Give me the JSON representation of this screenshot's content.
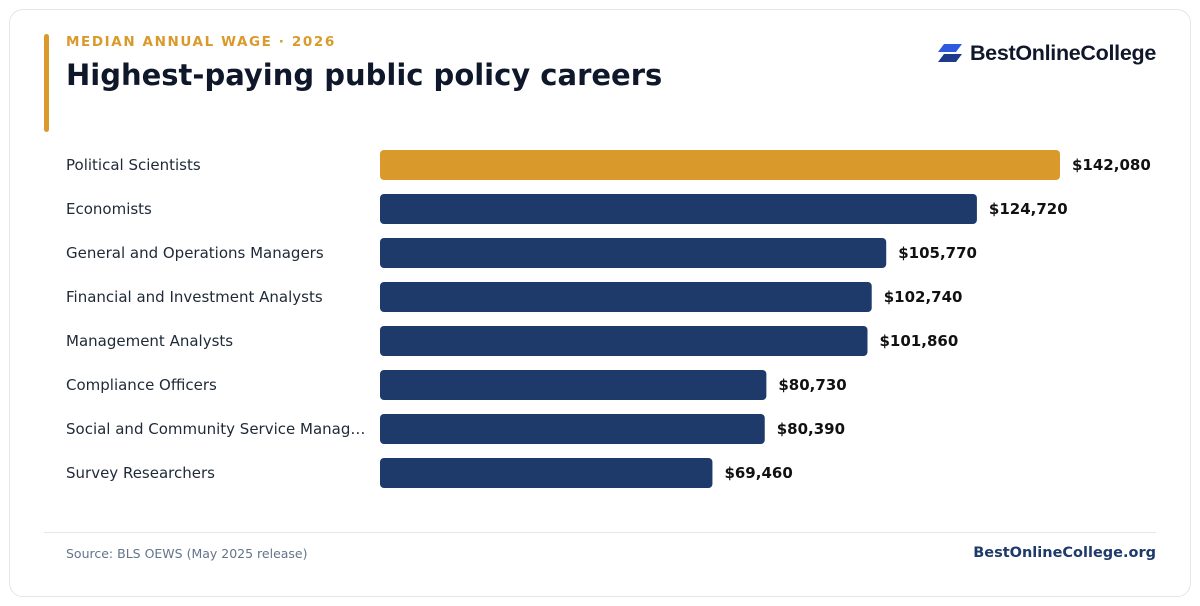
{
  "header": {
    "eyebrow": "MEDIAN ANNUAL WAGE · 2026",
    "title": "Highest-paying public policy careers"
  },
  "brand": {
    "logo_text": "BestOnlineCollege",
    "site": "BestOnlineCollege.org",
    "logo_icon": "stacked-parallelogram-logo"
  },
  "footer": {
    "source": "Source: BLS OEWS (May 2025 release)"
  },
  "colors": {
    "highlight": "#d99a2b",
    "bar": "#1e3a6b",
    "text": "#0f172a",
    "logo_blue": "#2f5ae0"
  },
  "chart_data": {
    "type": "bar",
    "orientation": "horizontal",
    "categories": [
      "Political Scientists",
      "Economists",
      "General and Operations Managers",
      "Financial and Investment Analysts",
      "Management Analysts",
      "Compliance Officers",
      "Social and Community Service Manag…",
      "Survey Researchers"
    ],
    "values": [
      142080,
      124720,
      105770,
      102740,
      101860,
      80730,
      80390,
      69460
    ],
    "value_labels": [
      "$142,080",
      "$124,720",
      "$105,770",
      "$102,740",
      "$101,860",
      "$80,730",
      "$80,390",
      "$69,460"
    ],
    "highlight_index": 0,
    "xlim": [
      0,
      142080
    ],
    "grid": false,
    "legend": "none"
  }
}
